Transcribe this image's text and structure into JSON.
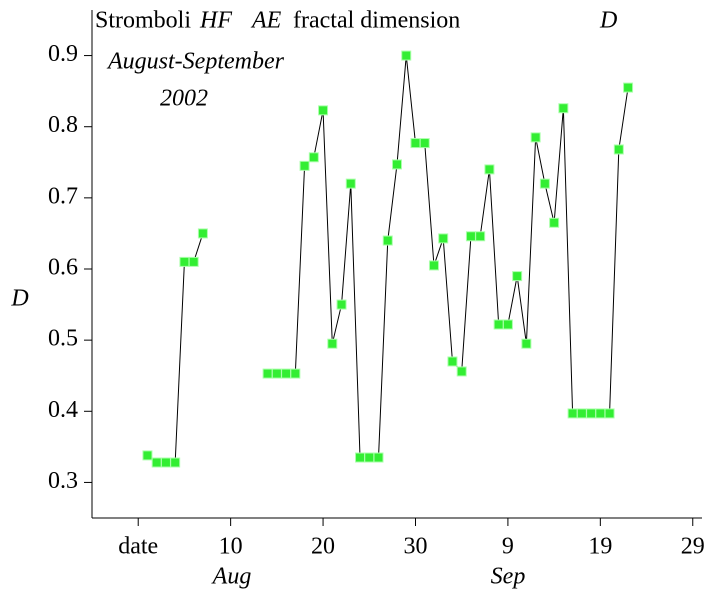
{
  "chart_data": {
    "type": "line",
    "title": [
      "Stromboli",
      "HF",
      "AE",
      "fractal dimension",
      "D"
    ],
    "subtitle": [
      "August-September",
      "2002"
    ],
    "ylabel": "D",
    "month_labels": [
      "Aug",
      "Sep"
    ],
    "x": [
      1,
      2,
      3,
      4,
      5,
      6,
      7,
      8,
      9,
      10,
      11,
      12,
      13,
      14,
      15,
      16,
      17,
      18,
      19,
      20,
      21,
      22,
      23,
      24,
      25,
      26,
      27,
      28,
      29,
      30,
      31,
      32,
      33,
      34,
      35,
      36,
      37,
      38,
      39,
      40,
      41,
      42,
      43,
      44,
      45,
      46,
      47,
      48,
      49,
      50,
      51,
      52,
      53
    ],
    "series": [
      {
        "color": "#33ee33",
        "line_color": "#000000",
        "values": [
          0.338,
          0.328,
          0.328,
          0.328,
          0.61,
          0.61,
          0.65,
          null,
          null,
          null,
          null,
          null,
          null,
          0.453,
          0.453,
          0.453,
          0.453,
          0.745,
          0.757,
          0.823,
          0.495,
          0.55,
          0.72,
          0.335,
          0.335,
          0.335,
          0.64,
          0.747,
          0.9,
          0.777,
          0.777,
          0.605,
          0.643,
          0.47,
          0.456,
          0.646,
          0.646,
          0.74,
          0.522,
          0.522,
          0.59,
          0.495,
          0.785,
          0.72,
          0.665,
          0.826,
          0.397,
          0.397,
          0.397,
          0.397,
          0.397,
          0.768,
          0.855
        ]
      }
    ],
    "xlim": [
      -5,
      61
    ],
    "ylim": [
      0.25,
      0.95
    ],
    "xticks": [
      {
        "value": 0,
        "label": "date"
      },
      10,
      20,
      30,
      {
        "value": 40,
        "label": "9"
      },
      {
        "value": 50,
        "label": "19"
      },
      {
        "value": 60,
        "label": "29"
      }
    ],
    "yticks": [
      0.3,
      0.4,
      0.5,
      0.6,
      0.7,
      0.8,
      0.9
    ]
  }
}
